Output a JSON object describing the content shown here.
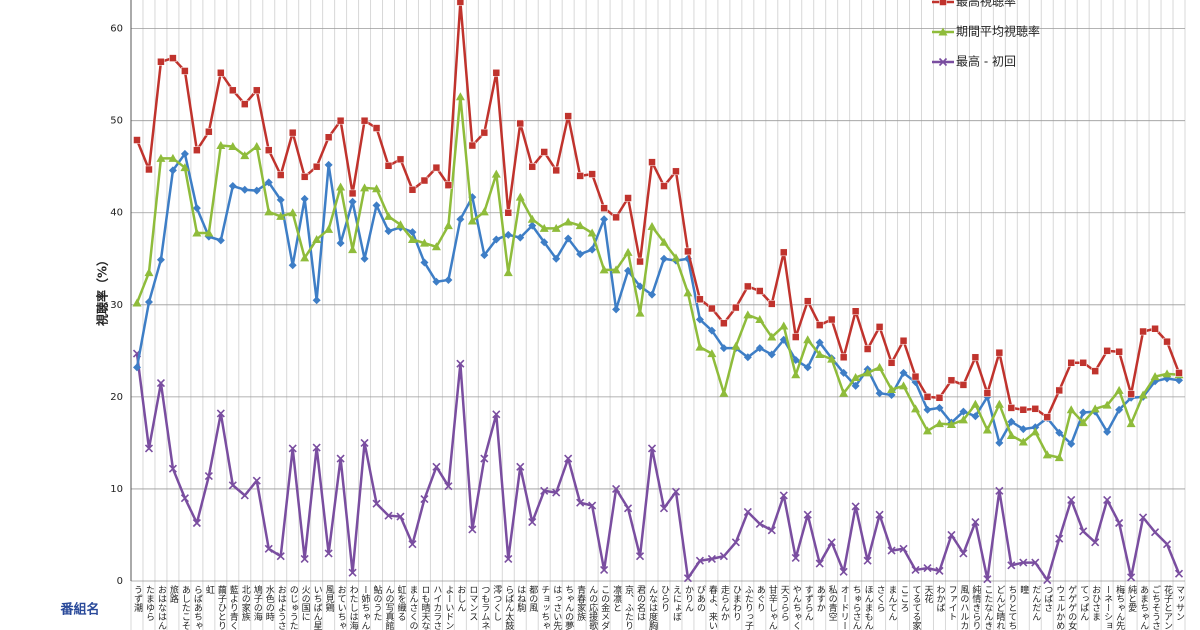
{
  "chart_data": {
    "type": "line",
    "y_label": "視聴率（%）",
    "x_label": "番組名",
    "categories": [
      "うず潮",
      "たまゆら",
      "おはなはん",
      "旅路",
      "あしたこそ",
      "らばあちゃん",
      "虹",
      "繭子ひとり",
      "藍より青く",
      "北の家族",
      "鳩子の海",
      "水色の時",
      "おはようさん",
      "のじゅうたん",
      "火の国に",
      "いちばん星",
      "風見鶏",
      "おていちゃん",
      "わたしは海",
      "ー姉ちゃん",
      "鮎のうた",
      "んの写真館",
      "虹を織る",
      "まんさくの花",
      "ロも晴天なり",
      "ハイカラさん",
      "よーいドン",
      "おしん",
      "ロマンス",
      "つもラムネ色",
      "澪つくし",
      "らばん太鼓",
      "はね駒",
      "都の風",
      "チョッちゃん",
      "はっさい先生",
      "ちゃんの夢",
      "青春家族",
      "んの応援歌",
      "この金メダル",
      "凛凛と",
      "京、ふたり",
      "君の名は",
      "んなは度胸",
      "ひらり",
      "えにょぼ",
      "かりん",
      "ぴあの",
      "春よ、来い",
      "走らんか",
      "ひまわり",
      "ふたりっ子",
      "あぐり",
      "甘辛しゃん",
      "天うらら",
      "やんちゃくれ",
      "すずらん",
      "あすか",
      "私の青空",
      "オードリー",
      "ちゅらさん",
      "ほんまもん",
      "さくら",
      "まんてん",
      "こころ",
      "てるてる家族",
      "天花",
      "わかば",
      "ファイト",
      "風のハルカ",
      "純情きらり",
      "こたなんきん",
      "どんど晴れ",
      "ちりとてちん",
      "瞳",
      "だんだん",
      "つばさ",
      "ウェルかめ",
      "ゲゲゲの女房",
      "てっぱん",
      "おひさま",
      "ーネーション",
      "梅ちゃん先生",
      "純と愛",
      "あまちゃん",
      "ごちそうさん",
      "花子とアン",
      "マッサン"
    ],
    "series": [
      {
        "name": "最高視聴率",
        "color": "#c0332d",
        "marker": "square",
        "values": [
          47.9,
          44.7,
          56.4,
          56.8,
          55.4,
          46.8,
          48.8,
          55.2,
          53.3,
          51.8,
          53.3,
          46.8,
          44.1,
          48.7,
          43.9,
          45.0,
          48.2,
          50.0,
          42.1,
          50.0,
          49.2,
          45.1,
          45.8,
          42.5,
          43.5,
          44.9,
          43.0,
          62.9,
          47.3,
          48.7,
          55.2,
          40.0,
          49.7,
          45.0,
          46.6,
          44.6,
          50.5,
          44.0,
          44.2,
          40.5,
          39.5,
          41.6,
          34.7,
          45.5,
          42.9,
          44.5,
          35.8,
          30.6,
          29.6,
          28.0,
          29.7,
          32.0,
          31.5,
          30.1,
          35.7,
          26.5,
          30.4,
          27.8,
          28.4,
          24.3,
          29.3,
          25.2,
          27.6,
          23.7,
          26.1,
          22.2,
          20.0,
          19.9,
          21.8,
          21.3,
          24.3,
          20.4,
          24.8,
          18.8,
          18.6,
          18.7,
          17.8,
          20.7,
          23.7,
          23.7,
          22.8,
          25.0,
          24.9,
          20.3,
          27.1,
          27.4,
          26.0,
          22.6
        ]
      },
      {
        "name": "期間平均視聴率",
        "color": "#8fbc3b",
        "marker": "triangle",
        "values": [
          30.2,
          33.5,
          45.9,
          45.9,
          44.9,
          37.8,
          37.8,
          47.3,
          47.2,
          46.2,
          47.2,
          40.1,
          39.6,
          40.0,
          35.1,
          37.1,
          38.2,
          42.8,
          36.0,
          42.7,
          42.6,
          39.6,
          38.7,
          37.1,
          36.7,
          36.3,
          38.6,
          52.6,
          39.1,
          40.1,
          44.2,
          33.5,
          41.7,
          39.3,
          38.3,
          38.3,
          39.0,
          38.6,
          37.8,
          33.8,
          33.8,
          35.7,
          29.1,
          38.5,
          36.8,
          35.1,
          31.3,
          25.4,
          24.7,
          20.4,
          25.5,
          28.9,
          28.4,
          26.5,
          27.7,
          22.4,
          26.2,
          24.6,
          24.1,
          20.4,
          22.1,
          22.6,
          23.2,
          20.8,
          21.2,
          18.7,
          16.3,
          17.1,
          17.0,
          17.5,
          19.2,
          16.4,
          19.2,
          15.8,
          15.1,
          16.2,
          13.7,
          13.4,
          18.6,
          17.2,
          18.7,
          19.1,
          20.7,
          17.1,
          20.2,
          22.2,
          22.5,
          22.4
        ]
      },
      {
        "name": "最高 - 初回",
        "color": "#7a4ea0",
        "marker": "cross",
        "values": [
          24.7,
          14.4,
          21.5,
          12.2,
          9.0,
          6.3,
          11.4,
          18.2,
          10.4,
          9.3,
          10.9,
          3.5,
          2.7,
          14.4,
          2.4,
          14.5,
          3.0,
          13.3,
          0.9,
          15.0,
          8.4,
          7.1,
          7.0,
          4.0,
          8.9,
          12.4,
          10.3,
          23.6,
          5.6,
          13.3,
          18.1,
          2.4,
          12.4,
          6.4,
          9.8,
          9.6,
          13.3,
          8.5,
          8.2,
          1.2,
          10.0,
          7.9,
          2.7,
          14.4,
          7.9,
          9.7,
          0.3,
          2.2,
          2.4,
          2.7,
          4.2,
          7.5,
          6.2,
          5.5,
          9.3,
          2.5,
          7.2,
          1.9,
          4.2,
          1.0,
          8.1,
          2.2,
          7.2,
          3.3,
          3.5,
          1.2,
          1.4,
          1.1,
          5.0,
          3.0,
          6.4,
          0.2,
          9.8,
          1.7,
          2.0,
          2.0,
          0.1,
          4.6,
          8.8,
          5.4,
          4.2,
          8.8,
          6.3,
          0.4,
          6.9,
          5.3,
          4.0,
          0.8
        ]
      },
      {
        "color": "#3e7ec6",
        "marker": "diamond",
        "values": [
          23.2,
          30.3,
          34.9,
          44.6,
          46.4,
          40.5,
          37.4,
          37.0,
          42.9,
          42.5,
          42.4,
          43.3,
          41.4,
          34.3,
          41.5,
          30.5,
          45.2,
          36.7,
          41.2,
          35.0,
          40.8,
          38.0,
          38.4,
          37.9,
          34.6,
          32.5,
          32.7,
          39.3,
          41.7,
          35.4,
          37.1,
          37.6,
          37.3,
          38.6,
          36.8,
          35.0,
          37.2,
          35.5,
          36.0,
          39.3,
          29.5,
          33.7,
          32.0,
          31.1,
          35.0,
          34.8,
          35.0,
          28.4,
          27.2,
          25.3,
          25.3,
          24.3,
          25.3,
          24.6,
          26.2,
          24.0,
          23.2,
          25.9,
          24.2,
          22.6,
          21.2,
          23.0,
          20.4,
          20.2,
          22.6,
          21.6,
          18.6,
          18.8,
          17.2,
          18.4,
          17.9,
          20.0,
          15.0,
          17.3,
          16.5,
          16.7,
          17.7,
          16.1,
          14.9,
          18.3,
          18.4,
          16.2,
          18.6,
          19.9,
          20.0,
          21.7,
          22.0,
          21.8
        ]
      }
    ],
    "ylim": [
      0,
      63
    ],
    "yticks": [
      0,
      10,
      20,
      30,
      40,
      50,
      60
    ],
    "grid": true
  }
}
